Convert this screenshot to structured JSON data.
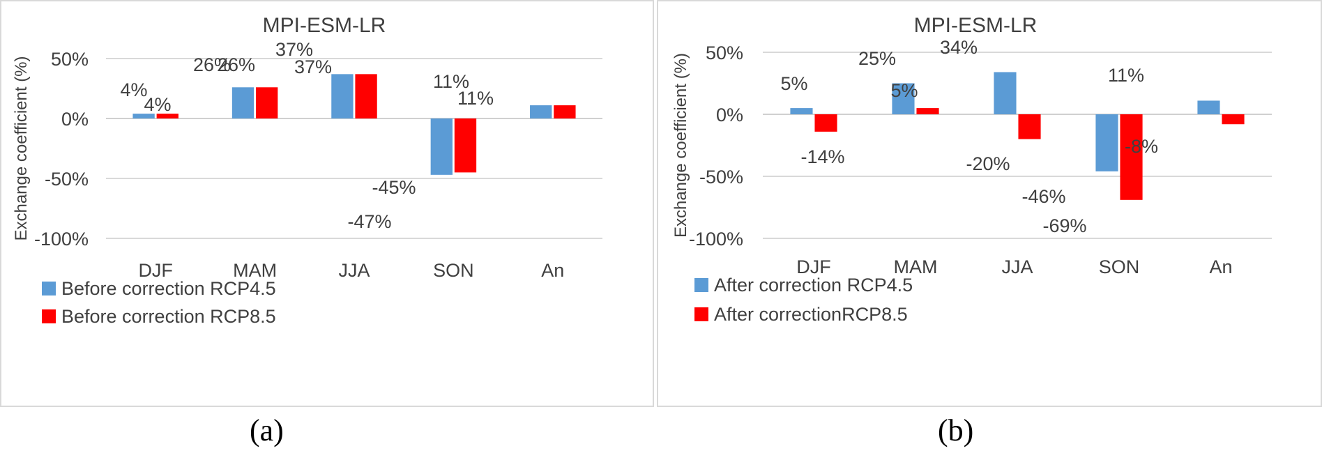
{
  "chart_data": [
    {
      "type": "bar",
      "title": "MPI-ESM-LR",
      "xlabel": "",
      "ylabel": "Exchange coefficient (%)",
      "categories": [
        "DJF",
        "MAM",
        "JJA",
        "SON",
        "An"
      ],
      "ylim": [
        -100,
        50
      ],
      "yticks": [
        50,
        0,
        -50,
        -100
      ],
      "ytick_labels": [
        "50%",
        "0%",
        "-50%",
        "-100%"
      ],
      "series": [
        {
          "name": "Before correction RCP4.5",
          "color": "#5b9bd5",
          "values": [
            4,
            26,
            37,
            -47,
            11
          ],
          "labels": [
            "4%",
            "26%",
            "37%",
            "-47%",
            "11%"
          ]
        },
        {
          "name": "Before correction RCP8.5",
          "color": "#ff0000",
          "values": [
            4,
            26,
            37,
            -45,
            11
          ],
          "labels": [
            "4%",
            "26%",
            "37%",
            "-45%",
            "11%"
          ]
        }
      ],
      "legend": "bottom-left",
      "caption": "(a)"
    },
    {
      "type": "bar",
      "title": "MPI-ESM-LR",
      "xlabel": "",
      "ylabel": "Exchange coefficient (%)",
      "categories": [
        "DJF",
        "MAM",
        "JJA",
        "SON",
        "An"
      ],
      "ylim": [
        -100,
        50
      ],
      "yticks": [
        50,
        0,
        -50,
        -100
      ],
      "ytick_labels": [
        "50%",
        "0%",
        "-50%",
        "-100%"
      ],
      "series": [
        {
          "name": "After correction RCP4.5",
          "color": "#5b9bd5",
          "values": [
            5,
            25,
            34,
            -46,
            11
          ],
          "labels": [
            "5%",
            "25%",
            "34%",
            "-46%",
            "11%"
          ]
        },
        {
          "name": "After correctionRCP8.5",
          "color": "#ff0000",
          "values": [
            -14,
            5,
            -20,
            -69,
            -8
          ],
          "labels": [
            "-14%",
            "5%",
            "-20%",
            "-69%",
            "-8%"
          ]
        }
      ],
      "legend": "bottom-left",
      "caption": "(b)"
    }
  ]
}
